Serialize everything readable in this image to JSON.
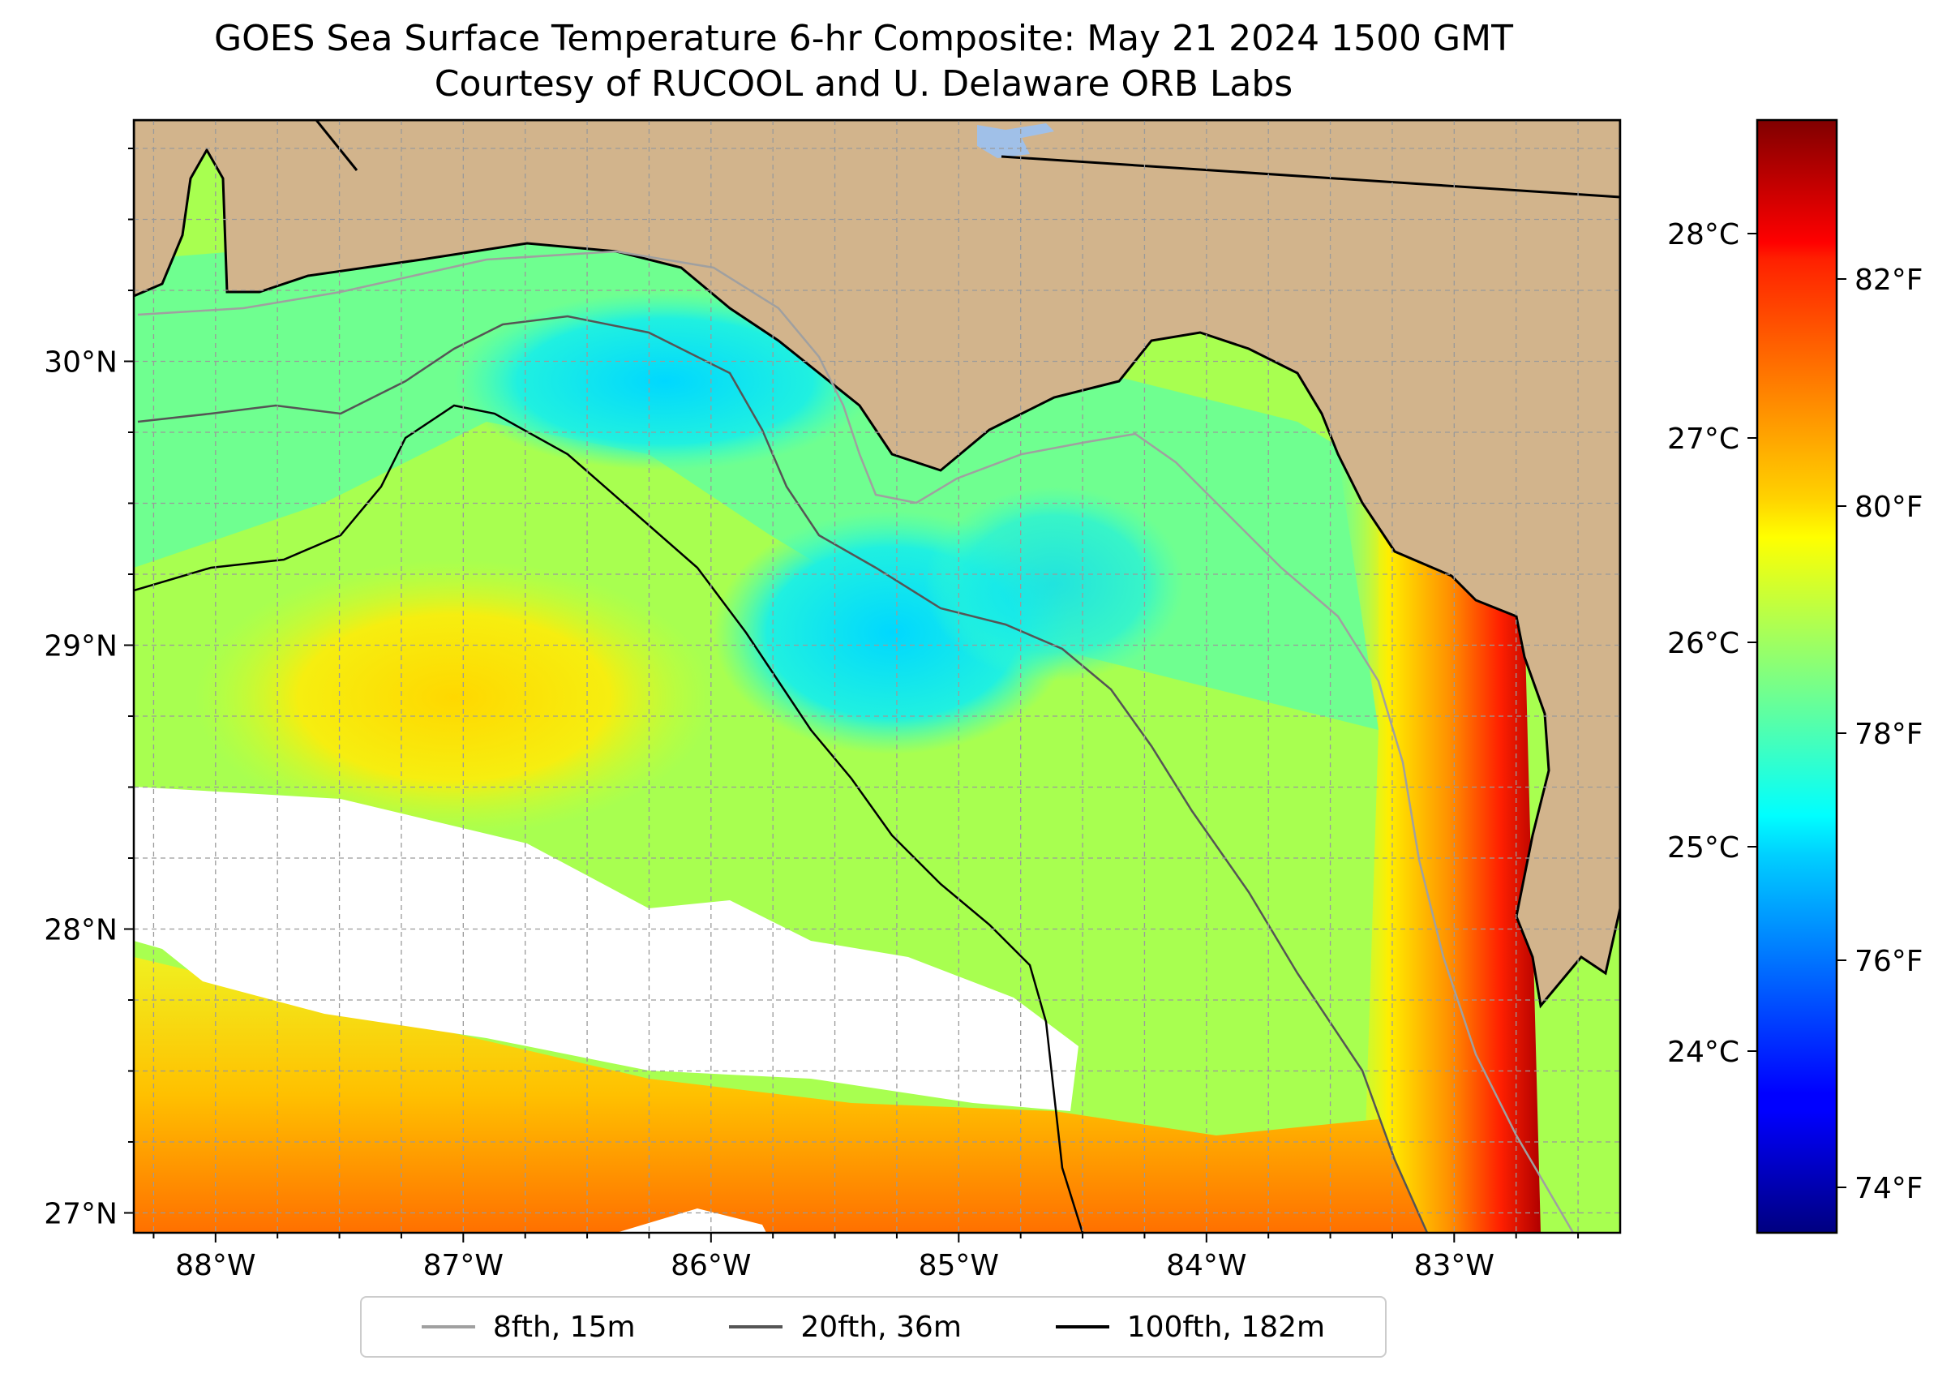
{
  "title_line1": "GOES Sea Surface Temperature 6-hr Composite: May 21 2024 1500 GMT",
  "title_line2": "Courtesy of RUCOOL and U. Delaware ORB Labs",
  "map": {
    "lon_range": [
      -88.33,
      -82.33
    ],
    "lat_range": [
      26.93,
      30.85
    ],
    "lon_ticks": [
      {
        "value": -88,
        "label": "88°W"
      },
      {
        "value": -87,
        "label": "87°W"
      },
      {
        "value": -86,
        "label": "86°W"
      },
      {
        "value": -85,
        "label": "85°W"
      },
      {
        "value": -84,
        "label": "84°W"
      },
      {
        "value": -83,
        "label": "83°W"
      }
    ],
    "lat_ticks": [
      {
        "value": 30,
        "label": "30°N"
      },
      {
        "value": 29,
        "label": "29°N"
      },
      {
        "value": 28,
        "label": "28°N"
      },
      {
        "value": 27,
        "label": "27°N"
      }
    ],
    "land_color": "#d2b48c",
    "no_data_color": "#ffffff",
    "gridlines": true
  },
  "colorbar": {
    "colormap": "jet",
    "range_f": [
      73.6,
      83.4
    ],
    "celsius_ticks": [
      {
        "value": 28,
        "label": "28°C"
      },
      {
        "value": 27,
        "label": "27°C"
      },
      {
        "value": 26,
        "label": "26°C"
      },
      {
        "value": 25,
        "label": "25°C"
      },
      {
        "value": 24,
        "label": "24°C"
      }
    ],
    "fahrenheit_ticks": [
      {
        "value": 82,
        "label": "82°F"
      },
      {
        "value": 80,
        "label": "80°F"
      },
      {
        "value": 78,
        "label": "78°F"
      },
      {
        "value": 76,
        "label": "76°F"
      },
      {
        "value": 74,
        "label": "74°F"
      }
    ]
  },
  "legend": [
    {
      "label": "8fth, 15m",
      "color": "#a0a0a0"
    },
    {
      "label": "20fth, 36m",
      "color": "#555555"
    },
    {
      "label": "100fth, 182m",
      "color": "#000000"
    }
  ]
}
